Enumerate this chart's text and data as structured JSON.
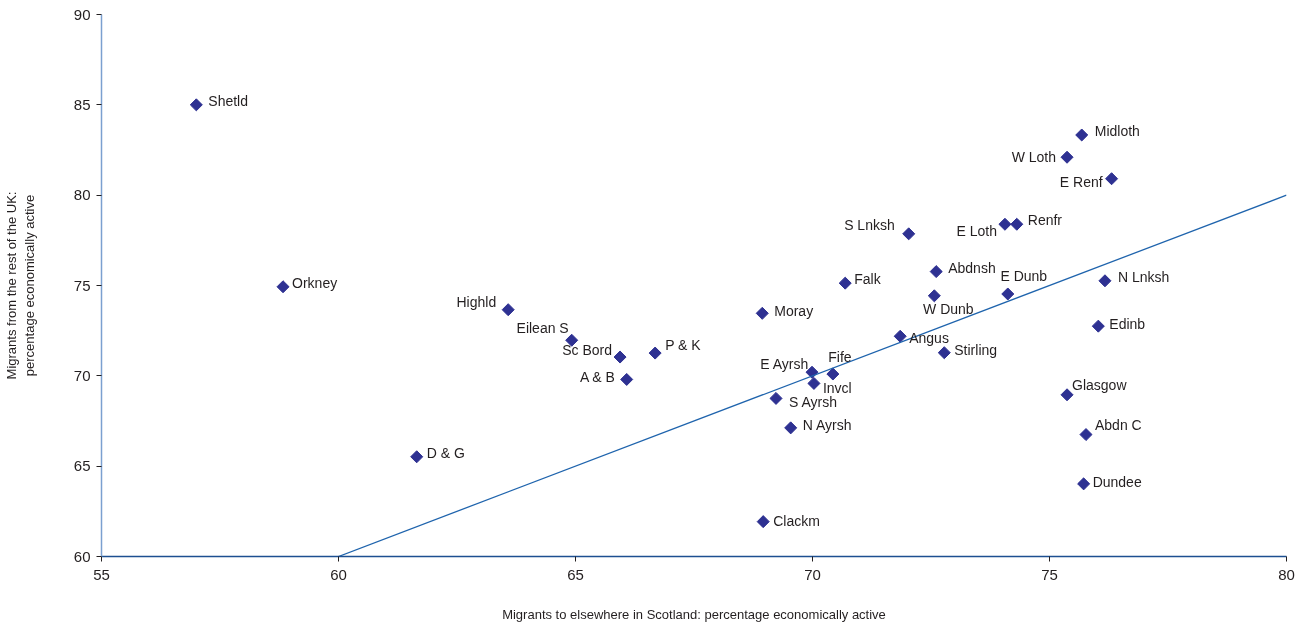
{
  "chart_data": {
    "type": "scatter",
    "xlabel": "Migrants to elsewhere in Scotland: percentage economically active",
    "ylabel": "Migrants from the rest of the UK: percentage economically active",
    "xlim": [
      55,
      80
    ],
    "ylim": [
      60,
      90
    ],
    "xticks": [
      55,
      60,
      65,
      70,
      75,
      80
    ],
    "yticks": [
      60,
      65,
      70,
      75,
      80,
      85,
      90
    ],
    "series": [
      {
        "color": "#2e3192",
        "marker": "diamond",
        "x": [
          57.0,
          58.83,
          63.58,
          64.92,
          65.94,
          66.68,
          66.08,
          61.65,
          68.94,
          70.69,
          69.99,
          70.43,
          70.03,
          69.23,
          69.54,
          68.96,
          71.85,
          72.78,
          72.61,
          72.57,
          72.03,
          74.06,
          74.31,
          74.12,
          75.68,
          75.37,
          76.31,
          76.17,
          76.03,
          75.37,
          75.77,
          75.72
        ],
        "values": [
          85.0,
          74.93,
          73.66,
          71.97,
          71.04,
          71.26,
          69.8,
          65.52,
          73.46,
          75.13,
          70.2,
          70.1,
          69.58,
          68.75,
          67.12,
          61.93,
          72.19,
          71.28,
          75.77,
          74.43,
          77.86,
          78.39,
          78.39,
          74.53,
          83.33,
          82.1,
          80.91,
          75.26,
          72.75,
          68.95,
          66.75,
          64.02
        ]
      },
      {
        "type": "line",
        "color": "#1f64ad",
        "marker": "none",
        "x": [
          60,
          80
        ],
        "values": [
          60,
          80
        ]
      }
    ],
    "annotations": [
      {
        "text": "Shetld",
        "x": 57.0,
        "y": 85.0
      },
      {
        "text": "Orkney",
        "x": 58.83,
        "y": 74.93
      },
      {
        "text": "Highld",
        "x": 63.58,
        "y": 73.66
      },
      {
        "text": "Eilean S",
        "x": 64.92,
        "y": 71.97
      },
      {
        "text": "Sc Bord",
        "x": 65.94,
        "y": 71.04
      },
      {
        "text": "P & K",
        "x": 66.68,
        "y": 71.26
      },
      {
        "text": "A & B",
        "x": 66.08,
        "y": 69.8
      },
      {
        "text": "D & G",
        "x": 61.65,
        "y": 65.52
      },
      {
        "text": "Moray",
        "x": 68.94,
        "y": 73.46
      },
      {
        "text": "Falk",
        "x": 70.69,
        "y": 75.13
      },
      {
        "text": "E Ayrsh",
        "x": 69.99,
        "y": 70.2
      },
      {
        "text": "Fife",
        "x": 70.43,
        "y": 70.1
      },
      {
        "text": "Invcl",
        "x": 70.03,
        "y": 69.58
      },
      {
        "text": "S Ayrsh",
        "x": 69.23,
        "y": 68.75
      },
      {
        "text": "N Ayrsh",
        "x": 69.54,
        "y": 67.12
      },
      {
        "text": "Clackm",
        "x": 68.96,
        "y": 61.93
      },
      {
        "text": "Angus",
        "x": 71.85,
        "y": 72.19
      },
      {
        "text": "Stirling",
        "x": 72.78,
        "y": 71.28
      },
      {
        "text": "Abdnsh",
        "x": 72.61,
        "y": 75.77
      },
      {
        "text": "W Dunb",
        "x": 72.57,
        "y": 74.43
      },
      {
        "text": "S Lnksh",
        "x": 72.03,
        "y": 77.86
      },
      {
        "text": "E Loth",
        "x": 74.06,
        "y": 78.39
      },
      {
        "text": "Renfr",
        "x": 74.31,
        "y": 78.39
      },
      {
        "text": "E Dunb",
        "x": 74.12,
        "y": 74.53
      },
      {
        "text": "Midloth",
        "x": 75.68,
        "y": 83.33
      },
      {
        "text": "W Loth",
        "x": 75.37,
        "y": 82.1
      },
      {
        "text": "E Renf",
        "x": 76.31,
        "y": 80.91
      },
      {
        "text": "N Lnksh",
        "x": 76.17,
        "y": 75.26
      },
      {
        "text": "Edinb",
        "x": 76.03,
        "y": 72.75
      },
      {
        "text": "Glasgow",
        "x": 75.37,
        "y": 68.95
      },
      {
        "text": "Abdn C",
        "x": 75.77,
        "y": 66.75
      },
      {
        "text": "Dundee",
        "x": 75.72,
        "y": 64.02
      }
    ]
  }
}
